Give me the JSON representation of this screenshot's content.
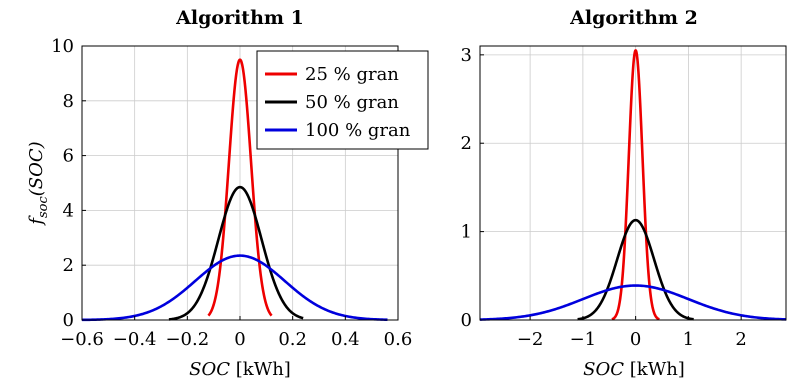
{
  "chart_data": [
    {
      "type": "line",
      "title": "Algorithm 1",
      "xlabel": "SOC [kWh]",
      "ylabel": "f_soc(SOC)",
      "xlim": [
        -0.6,
        0.6
      ],
      "ylim": [
        0,
        10
      ],
      "xticks": [
        -0.6,
        -0.4,
        -0.2,
        0,
        0.2,
        0.4,
        0.6
      ],
      "xtick_labels": [
        "−0.6",
        "−0.4",
        "−0.2",
        "0",
        "0.2",
        "0.4",
        "0.6"
      ],
      "yticks": [
        0,
        2,
        4,
        6,
        8,
        10
      ],
      "ytick_labels": [
        "0",
        "2",
        "4",
        "6",
        "8",
        "10"
      ],
      "grid": true,
      "legend": "top-right",
      "series": [
        {
          "name": "25 % gran",
          "color": "#ee0000",
          "peak": 9.5,
          "sigma": 0.042,
          "range": [
            -0.12,
            0.12
          ]
        },
        {
          "name": "50 % gran",
          "color": "#000000",
          "peak": 4.85,
          "sigma": 0.082,
          "range": [
            -0.27,
            0.24
          ]
        },
        {
          "name": "100 % gran",
          "color": "#0000dd",
          "peak": 2.35,
          "sigma": 0.17,
          "range": [
            -0.6,
            0.56
          ]
        }
      ]
    },
    {
      "type": "line",
      "title": "Algorithm 2",
      "xlabel": "SOC [kWh]",
      "ylabel": "",
      "xlim": [
        -2.95,
        2.85
      ],
      "ylim": [
        0,
        3.1
      ],
      "xticks": [
        -2,
        -1,
        0,
        1,
        2
      ],
      "xtick_labels": [
        "−2",
        "−1",
        "0",
        "1",
        "2"
      ],
      "yticks": [
        0,
        1,
        2,
        3
      ],
      "ytick_labels": [
        "0",
        "1",
        "2",
        "3"
      ],
      "grid": true,
      "series": [
        {
          "color": "#ee0000",
          "peak": 3.05,
          "sigma": 0.13,
          "range": [
            -0.45,
            0.45
          ]
        },
        {
          "color": "#000000",
          "peak": 1.13,
          "sigma": 0.35,
          "range": [
            -1.1,
            1.1
          ]
        },
        {
          "color": "#0000dd",
          "peak": 0.39,
          "sigma": 1.0,
          "range": [
            -2.95,
            2.85
          ]
        }
      ]
    }
  ]
}
